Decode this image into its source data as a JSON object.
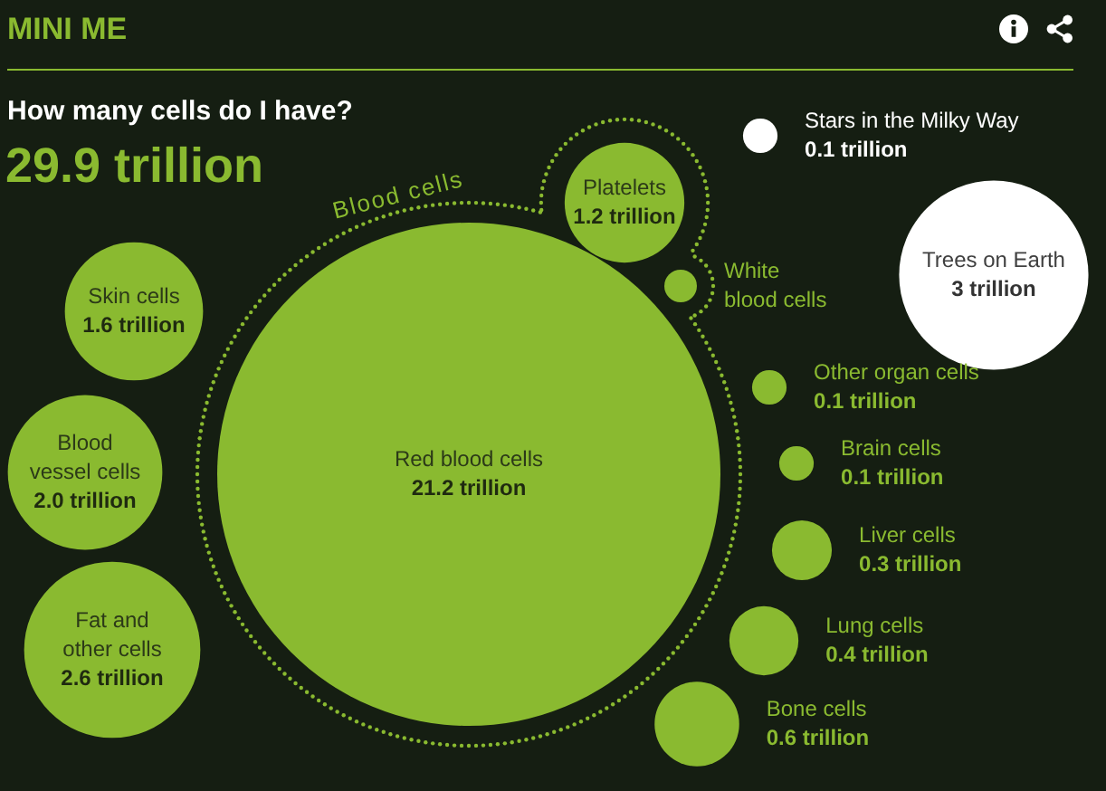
{
  "chart_data": {
    "type": "other",
    "title": "MINI ME",
    "subtitle": "How many cells do I have?",
    "annotations": [
      "29.9 trillion",
      "Blood cells"
    ],
    "categories": [
      "Red blood cells",
      "Platelets",
      "White blood cells",
      "Skin cells",
      "Blood vessel cells",
      "Fat and other cells",
      "Other organ cells",
      "Brain cells",
      "Liver cells",
      "Lung cells",
      "Bone cells",
      "Stars in the Milky Way",
      "Trees on Earth"
    ],
    "values": [
      21.2,
      1.2,
      null,
      1.6,
      2.0,
      2.6,
      0.1,
      0.1,
      0.3,
      0.4,
      0.6,
      0.1,
      3
    ],
    "value_labels": [
      "21.2 trillion",
      "1.2 trillion",
      null,
      "1.6 trillion",
      "2.0 trillion",
      "2.6 trillion",
      "0.1 trillion",
      "0.1 trillion",
      "0.3 trillion",
      "0.4 trillion",
      "0.6 trillion",
      "0.1 trillion",
      "3 trillion"
    ],
    "colors": [
      "#8aba30",
      "#8aba30",
      "#8aba30",
      "#8aba30",
      "#8aba30",
      "#8aba30",
      "#8aba30",
      "#8aba30",
      "#8aba30",
      "#8aba30",
      "#8aba30",
      "#ffffff",
      "#ffffff"
    ]
  }
}
